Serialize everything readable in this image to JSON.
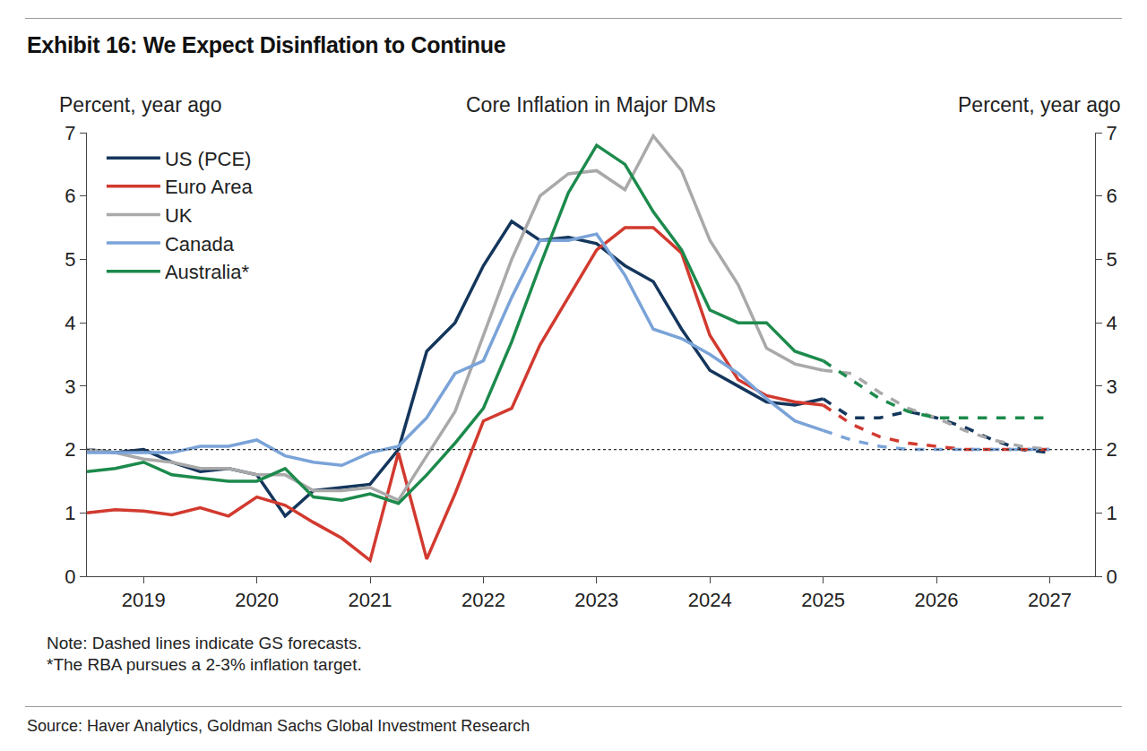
{
  "chart_data": {
    "type": "line",
    "title": "Exhibit 16: We Expect Disinflation to Continue",
    "subtitle": "Core Inflation in Major DMs",
    "ylabel": "Percent, year ago",
    "y2label": "Percent, year ago",
    "notes": [
      "Note: Dashed lines indicate GS forecasts.",
      "*The RBA pursues a 2-3% inflation target."
    ],
    "source": "Source: Haver Analytics, Goldman Sachs Global Investment Research",
    "x": [
      2018.5,
      2018.75,
      2019,
      2019.25,
      2019.5,
      2019.75,
      2020,
      2020.25,
      2020.5,
      2020.75,
      2021,
      2021.25,
      2021.5,
      2021.75,
      2022,
      2022.25,
      2022.5,
      2022.75,
      2023,
      2023.25,
      2023.5,
      2023.75,
      2024,
      2024.25,
      2024.5,
      2024.75,
      2025,
      2025.25,
      2025.5,
      2025.75,
      2026,
      2026.25,
      2026.5,
      2026.75,
      2027
    ],
    "xlim": [
      2018.5,
      2027.4
    ],
    "xticks": [
      2019,
      2020,
      2021,
      2022,
      2023,
      2024,
      2025,
      2026,
      2027
    ],
    "ylim": [
      0,
      7
    ],
    "yticks": [
      0,
      1,
      2,
      3,
      4,
      5,
      6,
      7
    ],
    "y2lim": [
      0,
      7
    ],
    "y2ticks": [
      0,
      1,
      2,
      3,
      4,
      5,
      6,
      7
    ],
    "hline": 2,
    "grid": false,
    "legend": "upper left",
    "series": [
      {
        "name": "US (PCE)",
        "color": "#14365c",
        "line_style": "solid",
        "values": [
          2.0,
          1.95,
          2.0,
          1.8,
          1.65,
          1.7,
          1.6,
          0.95,
          1.35,
          1.4,
          1.45,
          2.0,
          3.55,
          4.0,
          4.9,
          5.6,
          5.3,
          5.35,
          5.25,
          4.9,
          4.65,
          3.9,
          3.25,
          3.0,
          2.75,
          2.7,
          2.8,
          null,
          null,
          null,
          null,
          null,
          null,
          null,
          null
        ]
      },
      {
        "name": "Euro Area",
        "color": "#d23a2f",
        "line_style": "solid",
        "values": [
          1.0,
          1.05,
          1.03,
          0.97,
          1.08,
          0.95,
          1.25,
          1.12,
          0.85,
          0.6,
          0.25,
          1.95,
          0.27,
          1.3,
          2.45,
          2.65,
          3.65,
          4.4,
          5.15,
          5.5,
          5.5,
          5.1,
          3.8,
          3.1,
          2.85,
          2.75,
          2.7,
          null,
          null,
          null,
          null,
          null,
          null,
          null,
          null
        ]
      },
      {
        "name": "UK",
        "color": "#a9a9a9",
        "line_style": "solid",
        "values": [
          2.0,
          1.95,
          1.85,
          1.8,
          1.7,
          1.7,
          1.6,
          1.6,
          1.35,
          1.35,
          1.4,
          1.2,
          1.9,
          2.6,
          3.8,
          5.0,
          6.0,
          6.35,
          6.4,
          6.1,
          6.95,
          6.4,
          5.3,
          4.6,
          3.6,
          3.35,
          3.25,
          null,
          null,
          null,
          null,
          null,
          null,
          null,
          null
        ]
      },
      {
        "name": "Canada",
        "color": "#7aa3d8",
        "line_style": "solid",
        "values": [
          1.95,
          1.95,
          1.95,
          1.95,
          2.05,
          2.05,
          2.15,
          1.9,
          1.8,
          1.75,
          1.95,
          2.05,
          2.5,
          3.2,
          3.4,
          4.4,
          5.3,
          5.3,
          5.4,
          4.75,
          3.9,
          3.75,
          3.5,
          3.2,
          2.8,
          2.45,
          2.3,
          null,
          null,
          null,
          null,
          null,
          null,
          null,
          null
        ]
      },
      {
        "name": "Australia*",
        "color": "#1c8a4c",
        "line_style": "solid",
        "values": [
          1.65,
          1.7,
          1.8,
          1.6,
          1.55,
          1.5,
          1.5,
          1.7,
          1.25,
          1.2,
          1.3,
          1.15,
          1.6,
          2.1,
          2.65,
          3.7,
          4.9,
          6.05,
          6.8,
          6.5,
          5.75,
          5.15,
          4.2,
          4.0,
          4.0,
          3.55,
          3.4,
          null,
          null,
          null,
          null,
          null,
          null,
          null,
          null
        ]
      },
      {
        "name": "US (PCE)",
        "color": "#14365c",
        "line_style": "dashed",
        "values": [
          null,
          null,
          null,
          null,
          null,
          null,
          null,
          null,
          null,
          null,
          null,
          null,
          null,
          null,
          null,
          null,
          null,
          null,
          null,
          null,
          null,
          null,
          null,
          null,
          null,
          null,
          2.8,
          2.5,
          2.5,
          2.6,
          2.5,
          2.35,
          2.15,
          2.0,
          1.95
        ]
      },
      {
        "name": "Euro Area",
        "color": "#d23a2f",
        "line_style": "dashed",
        "values": [
          null,
          null,
          null,
          null,
          null,
          null,
          null,
          null,
          null,
          null,
          null,
          null,
          null,
          null,
          null,
          null,
          null,
          null,
          null,
          null,
          null,
          null,
          null,
          null,
          null,
          null,
          2.7,
          2.4,
          2.2,
          2.1,
          2.05,
          2.0,
          2.0,
          2.0,
          2.0
        ]
      },
      {
        "name": "UK",
        "color": "#a9a9a9",
        "line_style": "dashed",
        "values": [
          null,
          null,
          null,
          null,
          null,
          null,
          null,
          null,
          null,
          null,
          null,
          null,
          null,
          null,
          null,
          null,
          null,
          null,
          null,
          null,
          null,
          null,
          null,
          null,
          null,
          null,
          3.25,
          3.2,
          2.9,
          2.65,
          2.5,
          2.3,
          2.15,
          2.05,
          2.0
        ]
      },
      {
        "name": "Canada",
        "color": "#7aa3d8",
        "line_style": "dashed",
        "values": [
          null,
          null,
          null,
          null,
          null,
          null,
          null,
          null,
          null,
          null,
          null,
          null,
          null,
          null,
          null,
          null,
          null,
          null,
          null,
          null,
          null,
          null,
          null,
          null,
          null,
          null,
          2.3,
          2.15,
          2.05,
          2.0,
          2.0,
          2.0,
          2.0,
          2.0,
          2.0
        ]
      },
      {
        "name": "Australia*",
        "color": "#1c8a4c",
        "line_style": "dashed",
        "values": [
          null,
          null,
          null,
          null,
          null,
          null,
          null,
          null,
          null,
          null,
          null,
          null,
          null,
          null,
          null,
          null,
          null,
          null,
          null,
          null,
          null,
          null,
          null,
          null,
          null,
          null,
          3.4,
          3.1,
          2.8,
          2.6,
          2.5,
          2.5,
          2.5,
          2.5,
          2.5
        ]
      }
    ]
  }
}
